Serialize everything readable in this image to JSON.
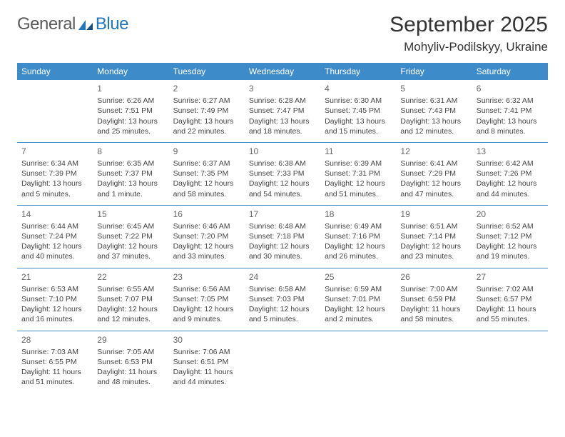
{
  "logo": {
    "general": "General",
    "blue": "Blue"
  },
  "title": "September 2025",
  "location": "Mohyliv-Podilskyy, Ukraine",
  "weekdays": [
    "Sunday",
    "Monday",
    "Tuesday",
    "Wednesday",
    "Thursday",
    "Friday",
    "Saturday"
  ],
  "colors": {
    "header_bg": "#3d8bc9",
    "header_text": "#ffffff",
    "rule": "#3d8bc9",
    "logo_gray": "#5a5a5a",
    "logo_blue": "#2176bd"
  },
  "weeks": [
    [
      null,
      {
        "n": "1",
        "sr": "Sunrise: 6:26 AM",
        "ss": "Sunset: 7:51 PM",
        "dl": "Daylight: 13 hours and 25 minutes."
      },
      {
        "n": "2",
        "sr": "Sunrise: 6:27 AM",
        "ss": "Sunset: 7:49 PM",
        "dl": "Daylight: 13 hours and 22 minutes."
      },
      {
        "n": "3",
        "sr": "Sunrise: 6:28 AM",
        "ss": "Sunset: 7:47 PM",
        "dl": "Daylight: 13 hours and 18 minutes."
      },
      {
        "n": "4",
        "sr": "Sunrise: 6:30 AM",
        "ss": "Sunset: 7:45 PM",
        "dl": "Daylight: 13 hours and 15 minutes."
      },
      {
        "n": "5",
        "sr": "Sunrise: 6:31 AM",
        "ss": "Sunset: 7:43 PM",
        "dl": "Daylight: 13 hours and 12 minutes."
      },
      {
        "n": "6",
        "sr": "Sunrise: 6:32 AM",
        "ss": "Sunset: 7:41 PM",
        "dl": "Daylight: 13 hours and 8 minutes."
      }
    ],
    [
      {
        "n": "7",
        "sr": "Sunrise: 6:34 AM",
        "ss": "Sunset: 7:39 PM",
        "dl": "Daylight: 13 hours and 5 minutes."
      },
      {
        "n": "8",
        "sr": "Sunrise: 6:35 AM",
        "ss": "Sunset: 7:37 PM",
        "dl": "Daylight: 13 hours and 1 minute."
      },
      {
        "n": "9",
        "sr": "Sunrise: 6:37 AM",
        "ss": "Sunset: 7:35 PM",
        "dl": "Daylight: 12 hours and 58 minutes."
      },
      {
        "n": "10",
        "sr": "Sunrise: 6:38 AM",
        "ss": "Sunset: 7:33 PM",
        "dl": "Daylight: 12 hours and 54 minutes."
      },
      {
        "n": "11",
        "sr": "Sunrise: 6:39 AM",
        "ss": "Sunset: 7:31 PM",
        "dl": "Daylight: 12 hours and 51 minutes."
      },
      {
        "n": "12",
        "sr": "Sunrise: 6:41 AM",
        "ss": "Sunset: 7:29 PM",
        "dl": "Daylight: 12 hours and 47 minutes."
      },
      {
        "n": "13",
        "sr": "Sunrise: 6:42 AM",
        "ss": "Sunset: 7:26 PM",
        "dl": "Daylight: 12 hours and 44 minutes."
      }
    ],
    [
      {
        "n": "14",
        "sr": "Sunrise: 6:44 AM",
        "ss": "Sunset: 7:24 PM",
        "dl": "Daylight: 12 hours and 40 minutes."
      },
      {
        "n": "15",
        "sr": "Sunrise: 6:45 AM",
        "ss": "Sunset: 7:22 PM",
        "dl": "Daylight: 12 hours and 37 minutes."
      },
      {
        "n": "16",
        "sr": "Sunrise: 6:46 AM",
        "ss": "Sunset: 7:20 PM",
        "dl": "Daylight: 12 hours and 33 minutes."
      },
      {
        "n": "17",
        "sr": "Sunrise: 6:48 AM",
        "ss": "Sunset: 7:18 PM",
        "dl": "Daylight: 12 hours and 30 minutes."
      },
      {
        "n": "18",
        "sr": "Sunrise: 6:49 AM",
        "ss": "Sunset: 7:16 PM",
        "dl": "Daylight: 12 hours and 26 minutes."
      },
      {
        "n": "19",
        "sr": "Sunrise: 6:51 AM",
        "ss": "Sunset: 7:14 PM",
        "dl": "Daylight: 12 hours and 23 minutes."
      },
      {
        "n": "20",
        "sr": "Sunrise: 6:52 AM",
        "ss": "Sunset: 7:12 PM",
        "dl": "Daylight: 12 hours and 19 minutes."
      }
    ],
    [
      {
        "n": "21",
        "sr": "Sunrise: 6:53 AM",
        "ss": "Sunset: 7:10 PM",
        "dl": "Daylight: 12 hours and 16 minutes."
      },
      {
        "n": "22",
        "sr": "Sunrise: 6:55 AM",
        "ss": "Sunset: 7:07 PM",
        "dl": "Daylight: 12 hours and 12 minutes."
      },
      {
        "n": "23",
        "sr": "Sunrise: 6:56 AM",
        "ss": "Sunset: 7:05 PM",
        "dl": "Daylight: 12 hours and 9 minutes."
      },
      {
        "n": "24",
        "sr": "Sunrise: 6:58 AM",
        "ss": "Sunset: 7:03 PM",
        "dl": "Daylight: 12 hours and 5 minutes."
      },
      {
        "n": "25",
        "sr": "Sunrise: 6:59 AM",
        "ss": "Sunset: 7:01 PM",
        "dl": "Daylight: 12 hours and 2 minutes."
      },
      {
        "n": "26",
        "sr": "Sunrise: 7:00 AM",
        "ss": "Sunset: 6:59 PM",
        "dl": "Daylight: 11 hours and 58 minutes."
      },
      {
        "n": "27",
        "sr": "Sunrise: 7:02 AM",
        "ss": "Sunset: 6:57 PM",
        "dl": "Daylight: 11 hours and 55 minutes."
      }
    ],
    [
      {
        "n": "28",
        "sr": "Sunrise: 7:03 AM",
        "ss": "Sunset: 6:55 PM",
        "dl": "Daylight: 11 hours and 51 minutes."
      },
      {
        "n": "29",
        "sr": "Sunrise: 7:05 AM",
        "ss": "Sunset: 6:53 PM",
        "dl": "Daylight: 11 hours and 48 minutes."
      },
      {
        "n": "30",
        "sr": "Sunrise: 7:06 AM",
        "ss": "Sunset: 6:51 PM",
        "dl": "Daylight: 11 hours and 44 minutes."
      },
      null,
      null,
      null,
      null
    ]
  ]
}
